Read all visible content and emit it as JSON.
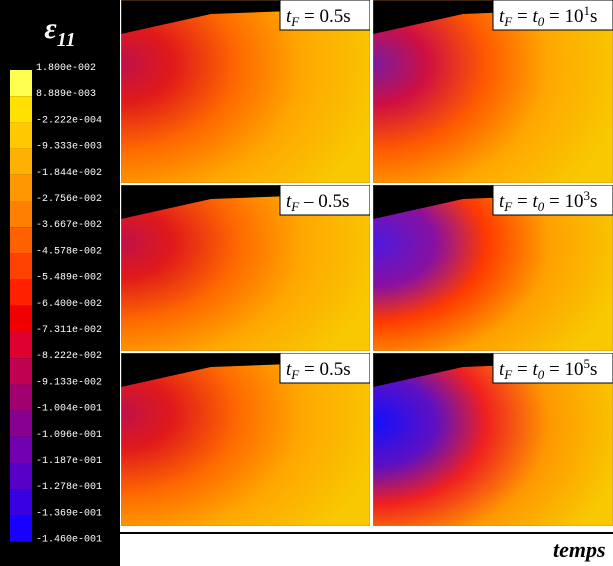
{
  "legend": {
    "title": "ε",
    "title_sub": "11",
    "labels": [
      "1.800e-002",
      "8.889e-003",
      "-2.222e-004",
      "-9.333e-003",
      "-1.844e-002",
      "-2.756e-002",
      "-3.667e-002",
      "-4.578e-002",
      "-5.489e-002",
      "-6.400e-002",
      "-7.311e-002",
      "-8.222e-002",
      "-9.133e-002",
      "-1.004e-001",
      "-1.096e-001",
      "-1.187e-001",
      "-1.278e-001",
      "-1.369e-001",
      "-1.460e-001"
    ]
  },
  "panels": [
    {
      "left": {
        "t": "t",
        "sub": "F",
        "eq": " = 0.5s"
      },
      "right": {
        "t": "t",
        "sub": "F",
        "eq": " = ",
        "t0": "t",
        "sub0": "0",
        "eq2": " = 10",
        "sup": "1",
        "unit": "s"
      }
    },
    {
      "left": {
        "t": "t",
        "sub": "F",
        "eq": " – 0.5s"
      },
      "right": {
        "t": "t",
        "sub": "F",
        "eq": " = ",
        "t0": "t",
        "sub0": "0",
        "eq2": " = 10",
        "sup": "3",
        "unit": "s"
      }
    },
    {
      "left": {
        "t": "t",
        "sub": "F",
        "eq": " = 0.5s"
      },
      "right": {
        "t": "t",
        "sub": "F",
        "eq": " = ",
        "t0": "t",
        "sub0": "0",
        "eq2": " = 10",
        "sup": "5",
        "unit": "s"
      }
    }
  ],
  "axis_label": "temps"
}
